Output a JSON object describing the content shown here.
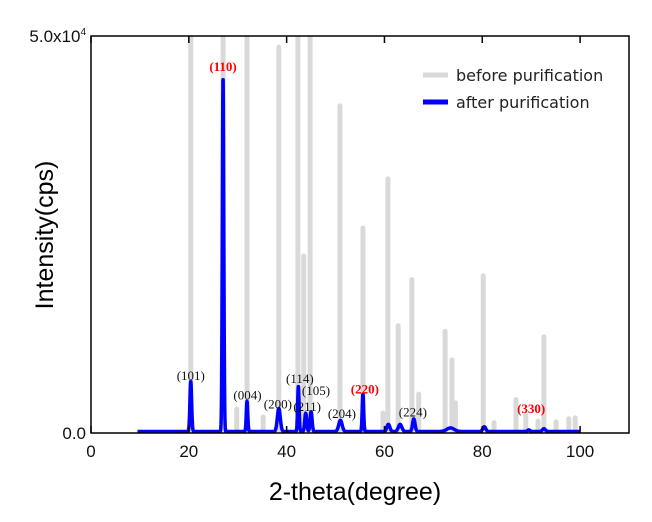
{
  "chart_data": {
    "type": "line",
    "title": "",
    "xlabel": "2-theta(degree)",
    "ylabel": "Intensity(cps)",
    "xlim": [
      0,
      110
    ],
    "ylim": [
      0,
      50000
    ],
    "x_ticks": [
      0,
      20,
      40,
      60,
      80,
      100
    ],
    "x_tick_labels": [
      "0",
      "20",
      "40",
      "60",
      "80",
      "100"
    ],
    "y_tick_labels": {
      "top": "5.0x10",
      "top_exp": "4",
      "bottom": "0.0"
    },
    "grid": false,
    "legend_position": "top-right",
    "series": [
      {
        "name": "before purification",
        "color": "#d9d9d9",
        "peaks": [
          [
            20.4,
            50000
          ],
          [
            27.0,
            50000
          ],
          [
            29.8,
            3000
          ],
          [
            31.9,
            50000
          ],
          [
            35.2,
            2000
          ],
          [
            38.4,
            48600
          ],
          [
            42.3,
            50000
          ],
          [
            43.5,
            22300
          ],
          [
            44.8,
            50000
          ],
          [
            50.9,
            41200
          ],
          [
            55.6,
            25800
          ],
          [
            59.7,
            2500
          ],
          [
            60.7,
            32000
          ],
          [
            62.8,
            13500
          ],
          [
            65.6,
            19300
          ],
          [
            67.0,
            4900
          ],
          [
            72.4,
            12800
          ],
          [
            73.8,
            9200
          ],
          [
            74.5,
            3800
          ],
          [
            80.2,
            19800
          ],
          [
            82.4,
            1300
          ],
          [
            86.9,
            4200
          ],
          [
            88.9,
            2300
          ],
          [
            91.4,
            1500
          ],
          [
            92.6,
            12100
          ],
          [
            95.1,
            1400
          ],
          [
            97.7,
            1800
          ],
          [
            99.0,
            1900
          ]
        ]
      },
      {
        "name": "after purification",
        "color": "#0000ff",
        "range": [
          9.5,
          100
        ],
        "peaks": [
          [
            20.4,
            6300,
            0.35
          ],
          [
            27.0,
            44700,
            0.3
          ],
          [
            31.9,
            3800,
            0.3
          ],
          [
            38.4,
            2900,
            0.6
          ],
          [
            42.4,
            5700,
            0.3
          ],
          [
            43.9,
            2300,
            0.4
          ],
          [
            45.0,
            2500,
            0.4
          ],
          [
            51.0,
            1400,
            0.7
          ],
          [
            55.6,
            4700,
            0.3
          ],
          [
            60.8,
            900,
            0.6
          ],
          [
            63.2,
            900,
            0.7
          ],
          [
            66.0,
            1600,
            0.5
          ],
          [
            73.5,
            450,
            1.5
          ],
          [
            80.4,
            600,
            0.6
          ],
          [
            89.5,
            200,
            0.5
          ],
          [
            92.6,
            350,
            0.6
          ]
        ]
      }
    ],
    "annotations": [
      {
        "text": "(101)",
        "x": 20.4,
        "y": 6700,
        "color": "#111111",
        "bold": false
      },
      {
        "text": "(110)",
        "x": 27.0,
        "y": 45600,
        "color": "#ff0000",
        "bold": true
      },
      {
        "text": "(004)",
        "x": 32.0,
        "y": 4200,
        "color": "#111111",
        "bold": false
      },
      {
        "text": "(200)",
        "x": 38.2,
        "y": 3100,
        "color": "#111111",
        "bold": false
      },
      {
        "text": "(114)",
        "x": 42.7,
        "y": 6300,
        "color": "#111111",
        "bold": false
      },
      {
        "text": "(105)",
        "x": 46.0,
        "y": 4800,
        "color": "#111111",
        "bold": false
      },
      {
        "text": "(211)",
        "x": 44.2,
        "y": 2800,
        "color": "#111111",
        "bold": false
      },
      {
        "text": "(204)",
        "x": 51.3,
        "y": 1900,
        "color": "#111111",
        "bold": false
      },
      {
        "text": "(220)",
        "x": 56.0,
        "y": 5000,
        "color": "#ff0000",
        "bold": true
      },
      {
        "text": "(224)",
        "x": 65.8,
        "y": 2100,
        "color": "#111111",
        "bold": false
      },
      {
        "text": "(330)",
        "x": 90.0,
        "y": 2500,
        "color": "#ff0000",
        "bold": true
      }
    ]
  }
}
